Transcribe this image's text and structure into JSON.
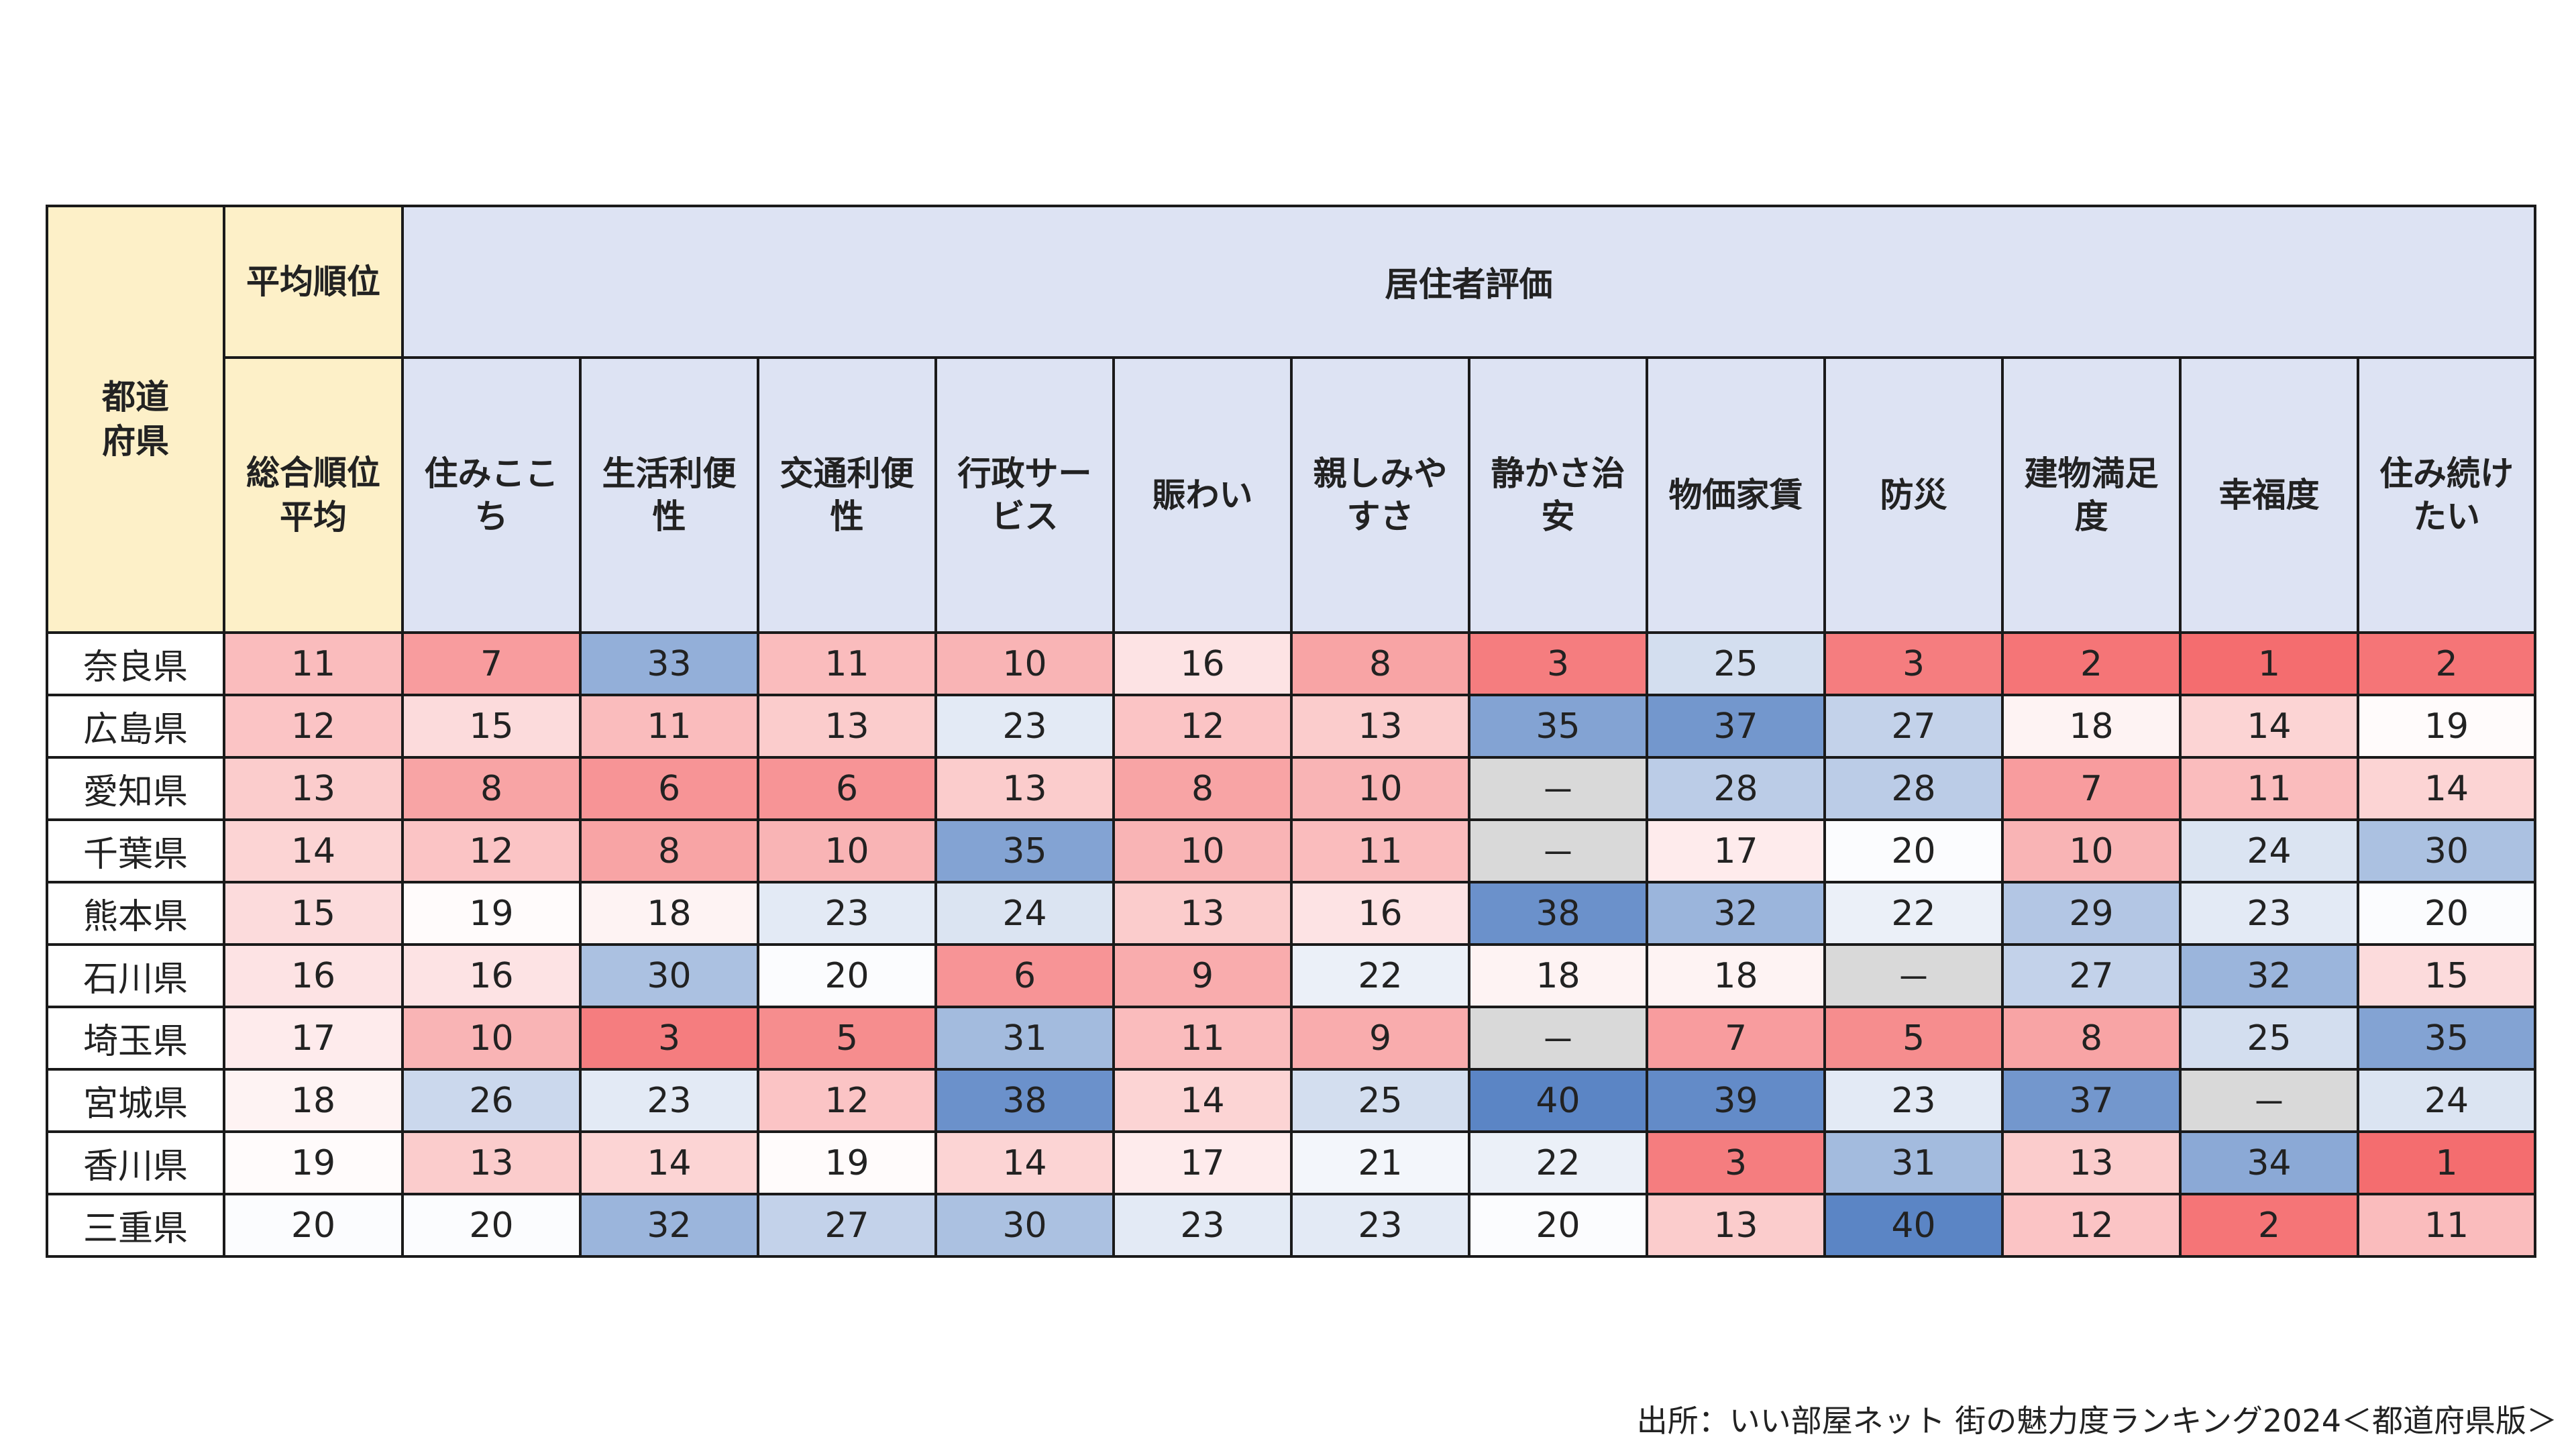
{
  "header": {
    "prefecture": "都道府県",
    "avg_rank_group": "平均順位",
    "resident_group": "居住者評価",
    "overall_avg": "総合順位平均",
    "columns": [
      "住みここち",
      "生活利便性",
      "交通利便性",
      "行政サービス",
      "賑わい",
      "親しみやすさ",
      "静かさ治安",
      "物価家賃",
      "防災",
      "建物満足度",
      "幸福度",
      "住み続けたい"
    ]
  },
  "rows": [
    {
      "name": "奈良県",
      "avg": "11",
      "values": [
        "7",
        "33",
        "11",
        "10",
        "16",
        "8",
        "3",
        "25",
        "3",
        "2",
        "1",
        "2"
      ]
    },
    {
      "name": "広島県",
      "avg": "12",
      "values": [
        "15",
        "11",
        "13",
        "23",
        "12",
        "13",
        "35",
        "37",
        "27",
        "18",
        "14",
        "19"
      ]
    },
    {
      "name": "愛知県",
      "avg": "13",
      "values": [
        "8",
        "6",
        "6",
        "13",
        "8",
        "10",
        "－",
        "28",
        "28",
        "7",
        "11",
        "14"
      ]
    },
    {
      "name": "千葉県",
      "avg": "14",
      "values": [
        "12",
        "8",
        "10",
        "35",
        "10",
        "11",
        "－",
        "17",
        "20",
        "10",
        "24",
        "30"
      ]
    },
    {
      "name": "熊本県",
      "avg": "15",
      "values": [
        "19",
        "18",
        "23",
        "24",
        "13",
        "16",
        "38",
        "32",
        "22",
        "29",
        "23",
        "20"
      ]
    },
    {
      "name": "石川県",
      "avg": "16",
      "values": [
        "16",
        "30",
        "20",
        "6",
        "9",
        "22",
        "18",
        "18",
        "－",
        "27",
        "32",
        "15"
      ]
    },
    {
      "name": "埼玉県",
      "avg": "17",
      "values": [
        "10",
        "3",
        "5",
        "31",
        "11",
        "9",
        "－",
        "7",
        "5",
        "8",
        "25",
        "35"
      ]
    },
    {
      "name": "宮城県",
      "avg": "18",
      "values": [
        "26",
        "23",
        "12",
        "38",
        "14",
        "25",
        "40",
        "39",
        "23",
        "37",
        "－",
        "24"
      ]
    },
    {
      "name": "香川県",
      "avg": "19",
      "values": [
        "13",
        "14",
        "19",
        "14",
        "17",
        "21",
        "22",
        "3",
        "31",
        "13",
        "34",
        "1"
      ]
    },
    {
      "name": "三重県",
      "avg": "20",
      "values": [
        "20",
        "32",
        "27",
        "30",
        "23",
        "23",
        "20",
        "13",
        "40",
        "12",
        "2",
        "11"
      ]
    }
  ],
  "colors": {
    "header_yellow": "#fdf0c8",
    "header_blue": "#dde3f3",
    "low_rank_red": "#f46d6f",
    "high_rank_blue": "#5b85c5",
    "missing_gray": "#d9d9d9"
  },
  "footer": "出所：いい部屋ネット 街の魅力度ランキング2024＜都道府県版＞"
}
